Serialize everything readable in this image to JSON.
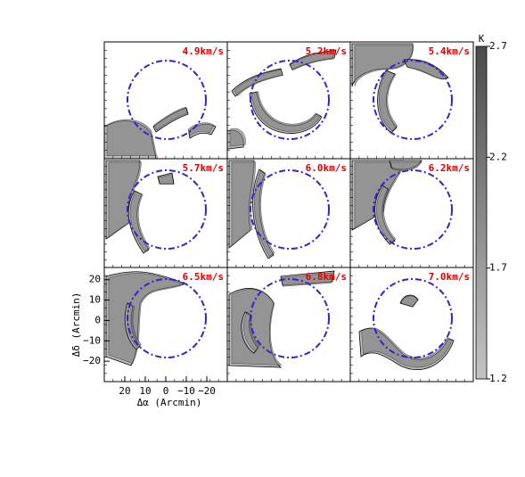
{
  "figure": {
    "panels": [
      "4.9km/s",
      "5.2km/s",
      "5.4km/s",
      "5.7km/s",
      "6.0km/s",
      "6.2km/s",
      "6.5km/s",
      "6.8km/s",
      "7.0km/s"
    ],
    "x_label": "Δα (Arcmin)",
    "y_label": "Δδ (Arcmin)",
    "xlim": [
      30,
      -30
    ],
    "ylim": [
      -30,
      26
    ],
    "xticks": [
      20,
      10,
      0,
      {
        "value": -10,
        "label": "−10"
      },
      {
        "value": -20,
        "label": "−20"
      }
    ],
    "yticks": [
      20,
      10,
      0,
      {
        "value": -10,
        "label": "−10"
      },
      {
        "value": -20,
        "label": "−20"
      }
    ],
    "colorbar": {
      "label": "K",
      "lim": [
        1.2,
        2.7
      ],
      "ticks": [
        2.7,
        2.2,
        1.7,
        1.2
      ]
    }
  }
}
